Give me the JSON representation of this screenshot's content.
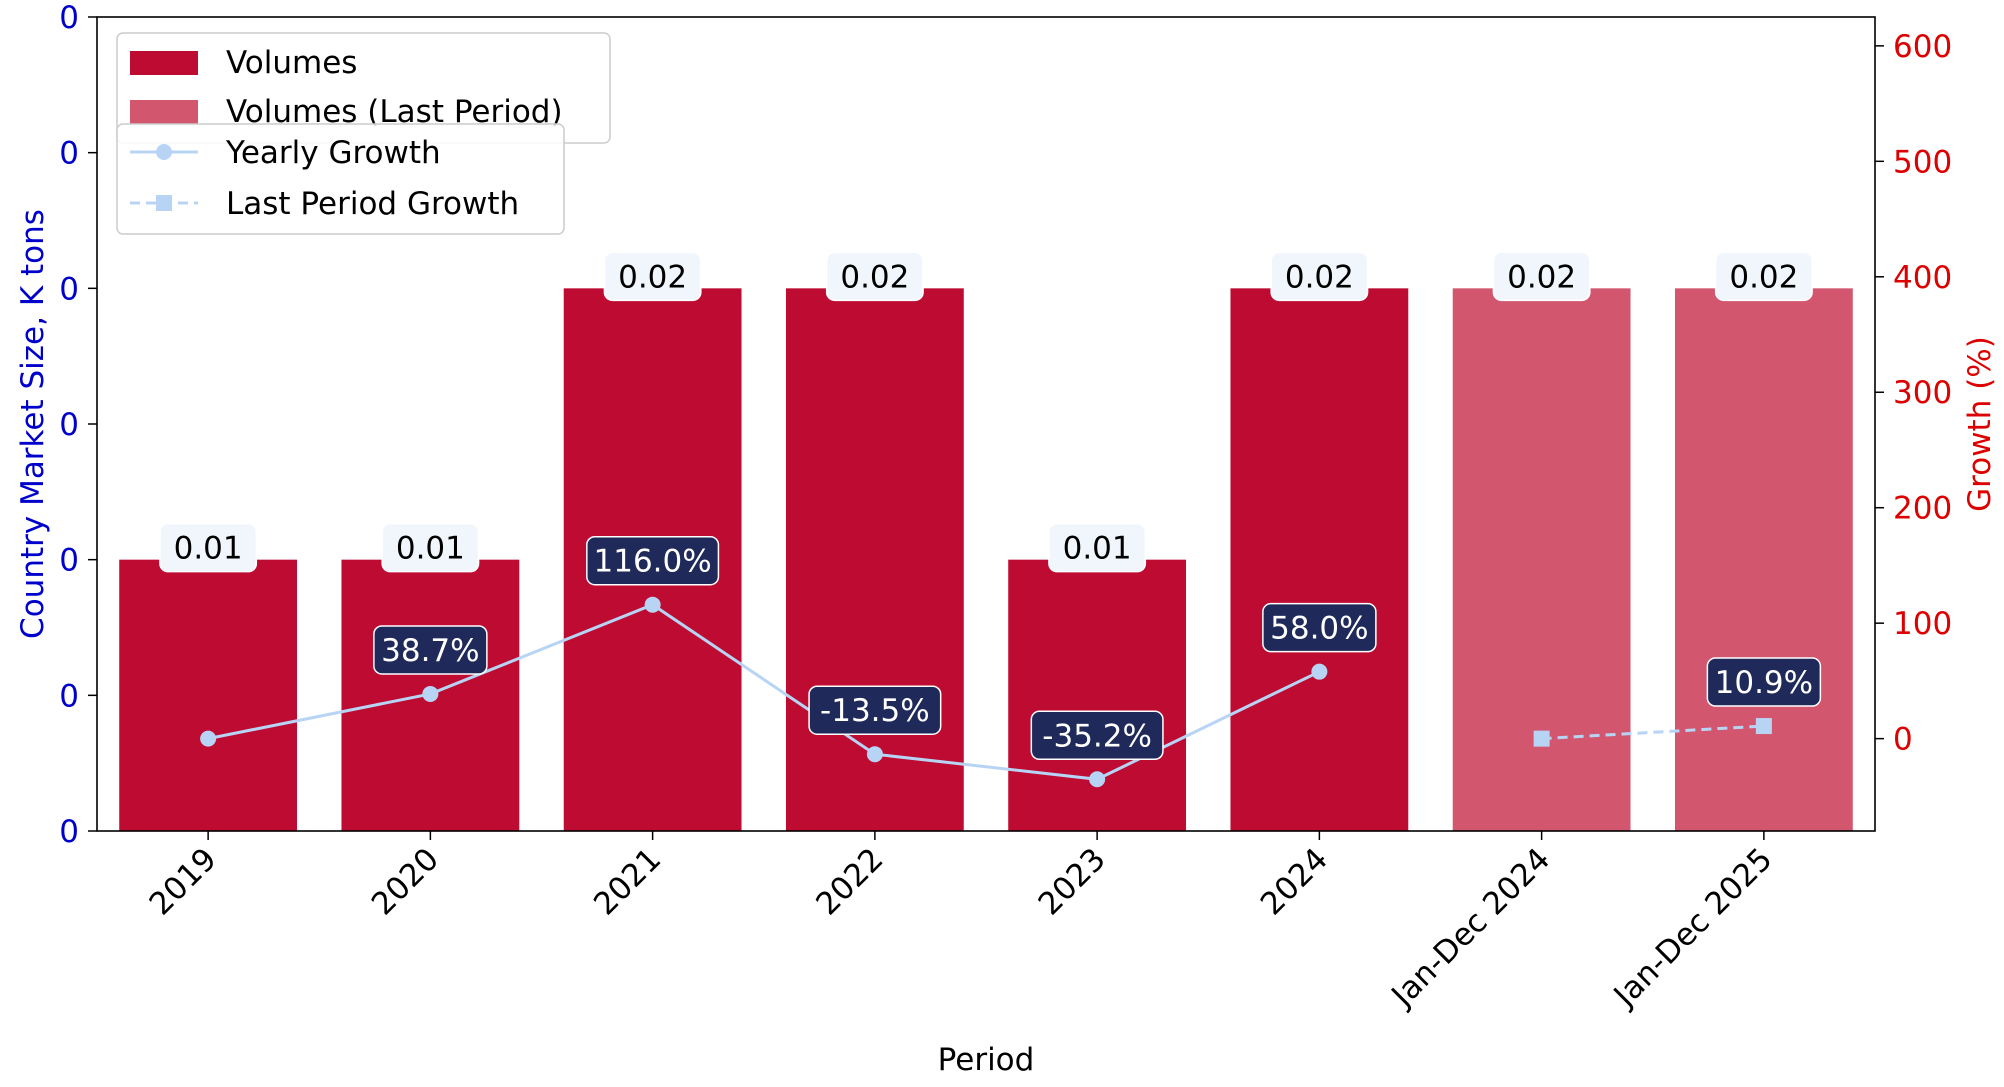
{
  "chart_data": {
    "type": "bar",
    "categories": [
      "2019",
      "2020",
      "2021",
      "2022",
      "2023",
      "2024",
      "Jan-Dec 2024",
      "Jan-Dec 2025"
    ],
    "series": [
      {
        "name": "Volumes",
        "kind": "bar",
        "color": "#bd0b32",
        "values": [
          0.01,
          0.01,
          0.02,
          0.02,
          0.01,
          0.02,
          null,
          null
        ],
        "labels": [
          "0.01",
          "0.01",
          "0.02",
          "0.02",
          "0.01",
          "0.02",
          null,
          null
        ]
      },
      {
        "name": "Volumes (Last Period)",
        "kind": "bar",
        "color": "#d1566e",
        "values": [
          null,
          null,
          null,
          null,
          null,
          null,
          0.02,
          0.02
        ],
        "labels": [
          null,
          null,
          null,
          null,
          null,
          null,
          "0.02",
          "0.02"
        ]
      },
      {
        "name": "Yearly Growth",
        "kind": "line",
        "axis": "right",
        "style": "solid",
        "marker": "circle",
        "color": "#b8d4f5",
        "values": [
          0,
          38.7,
          116.0,
          -13.5,
          -35.2,
          58.0,
          null,
          null
        ],
        "labels": [
          null,
          "38.7%",
          "116.0%",
          "-13.5%",
          "-35.2%",
          "58.0%",
          null,
          null
        ]
      },
      {
        "name": "Last Period Growth",
        "kind": "line",
        "axis": "right",
        "style": "dashed",
        "marker": "square",
        "color": "#b8d4f5",
        "values": [
          null,
          null,
          null,
          null,
          null,
          null,
          0,
          10.9
        ],
        "labels": [
          null,
          null,
          null,
          null,
          null,
          null,
          null,
          "10.9%"
        ]
      }
    ],
    "xlabel": "Period",
    "ylabel": "Country Market Size, K tons",
    "ylabel_right": "Growth (%)",
    "ylim": [
      0,
      0.03
    ],
    "ylim_right": [
      -80,
      625
    ],
    "yticks_left": [
      0,
      0.005,
      0.01,
      0.015,
      0.02,
      0.025,
      0.03
    ],
    "ytick_labels_left": [
      "0",
      "0",
      "0",
      "0",
      "0",
      "0",
      "0"
    ],
    "yticks_right": [
      0,
      100,
      200,
      300,
      400,
      500,
      600
    ],
    "ytick_labels_right": [
      "0",
      "100",
      "200",
      "300",
      "400",
      "500",
      "600"
    ],
    "left_axis_color": "#0000cc",
    "right_axis_color": "#dd0000",
    "label_box_color": "#f0f6fb",
    "growth_box_color": "#1f2a5a",
    "grid": false,
    "legend_placement": "top-left"
  }
}
